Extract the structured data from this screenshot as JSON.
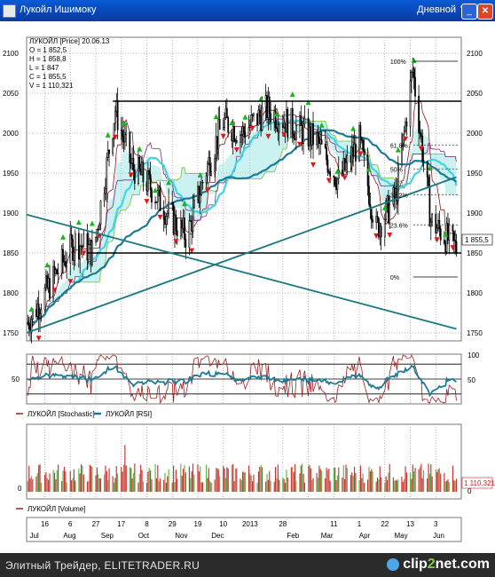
{
  "window": {
    "title": "Лукойл Ишимоку",
    "period": "Дневной"
  },
  "footer": {
    "caption": "Элитный Трейдер, ELITETRADER.RU",
    "logo_a": "clip",
    "logo_b": "2",
    "logo_c": "net.com"
  },
  "colors": {
    "background": "#ffffff",
    "grid": "#9a9a9a",
    "candle": "#000000",
    "up_marker": "#18b818",
    "down_marker": "#e01818",
    "ma_dark": "#1c7a96",
    "ma_light": "#3fd6e0",
    "conversion": "#8b1a1a",
    "baseline": "#7a2c8c",
    "lagging": "#6fbf3a",
    "cloud": "#8fe0e0",
    "trend": "#1a7a80",
    "stochastic": "#9a2020",
    "rsi": "#1c7a96"
  },
  "chart_data": [
    {
      "type": "candlestick",
      "title": "ЛУКОЙЛ [Price] 20.06.13",
      "ohlcv_box": [
        "O = 1 852,5",
        "H = 1 858,8",
        "L = 1 847",
        "C = 1 855,5",
        "V = 1 110,321"
      ],
      "ylim": [
        1740,
        2120
      ],
      "y_ticks": [
        1750,
        1800,
        1850,
        1900,
        1950,
        2000,
        2050,
        2100
      ],
      "last_price": "1 855,5",
      "x_tick_labels": [
        "16",
        "Aug",
        "6",
        "27",
        "Sep",
        "17",
        "8",
        "Oct",
        "29",
        "Nov",
        "19",
        "10",
        "Dec",
        "2013",
        "28",
        "Feb",
        "11",
        "Mar",
        "1",
        "Apr",
        "22",
        "13",
        "May",
        "3",
        "Jun"
      ],
      "month_labels": [
        "Jul",
        "Aug",
        "Sep",
        "Oct",
        "Nov",
        "Dec",
        "2013",
        "Feb",
        "Mar",
        "Apr",
        "May",
        "Jun"
      ],
      "fib_levels": [
        {
          "label": "100%",
          "value": 2090
        },
        {
          "label": "61.8%",
          "value": 1985
        },
        {
          "label": "50%",
          "value": 1955
        },
        {
          "label": "38.2%",
          "value": 1923
        },
        {
          "label": "23.6%",
          "value": 1885
        },
        {
          "label": "0%",
          "value": 1820
        }
      ],
      "horizontal_levels": [
        2040,
        1850
      ],
      "trendlines": [
        {
          "from": [
            "2012-07-01",
            1898
          ],
          "to": [
            "2013-06-20",
            1755
          ]
        },
        {
          "from": [
            "2012-07-01",
            1750
          ],
          "to": [
            "2013-06-20",
            1945
          ]
        }
      ],
      "price_series": [
        {
          "date": "2012-07-01",
          "close": 1760
        },
        {
          "date": "2012-07-20",
          "close": 1810
        },
        {
          "date": "2012-08-10",
          "close": 1865
        },
        {
          "date": "2012-08-25",
          "close": 1850
        },
        {
          "date": "2012-09-12",
          "close": 2030
        },
        {
          "date": "2012-09-25",
          "close": 1960
        },
        {
          "date": "2012-10-10",
          "close": 1935
        },
        {
          "date": "2012-10-25",
          "close": 1900
        },
        {
          "date": "2012-11-10",
          "close": 1870
        },
        {
          "date": "2012-11-25",
          "close": 1950
        },
        {
          "date": "2012-12-10",
          "close": 2015
        },
        {
          "date": "2012-12-25",
          "close": 2000
        },
        {
          "date": "2013-01-15",
          "close": 2030
        },
        {
          "date": "2013-02-05",
          "close": 2010
        },
        {
          "date": "2013-02-25",
          "close": 1990
        },
        {
          "date": "2013-03-15",
          "close": 1940
        },
        {
          "date": "2013-04-01",
          "close": 1990
        },
        {
          "date": "2013-04-15",
          "close": 1880
        },
        {
          "date": "2013-05-01",
          "close": 1920
        },
        {
          "date": "2013-05-15",
          "close": 2080
        },
        {
          "date": "2013-05-30",
          "close": 1890
        },
        {
          "date": "2013-06-20",
          "close": 1855.5
        }
      ]
    },
    {
      "type": "line",
      "title": "ЛУКОЙЛ [Stochastic]  ЛУКОЙЛ [RSI]",
      "series": [
        {
          "name": "ЛУКОЙЛ [Stochastic]"
        },
        {
          "name": "ЛУКОЙЛ [RSI]"
        }
      ],
      "ylim": [
        0,
        100
      ],
      "y_ticks": [
        0,
        50,
        100
      ],
      "right_ticks": [
        "100",
        "50"
      ]
    },
    {
      "type": "bar",
      "title": "ЛУКОЙЛ [Volume]",
      "series": [
        {
          "name": "ЛУКОЙЛ [Volume]"
        }
      ],
      "y_ticks": [
        "0"
      ],
      "last_value": "1 110,321"
    }
  ]
}
